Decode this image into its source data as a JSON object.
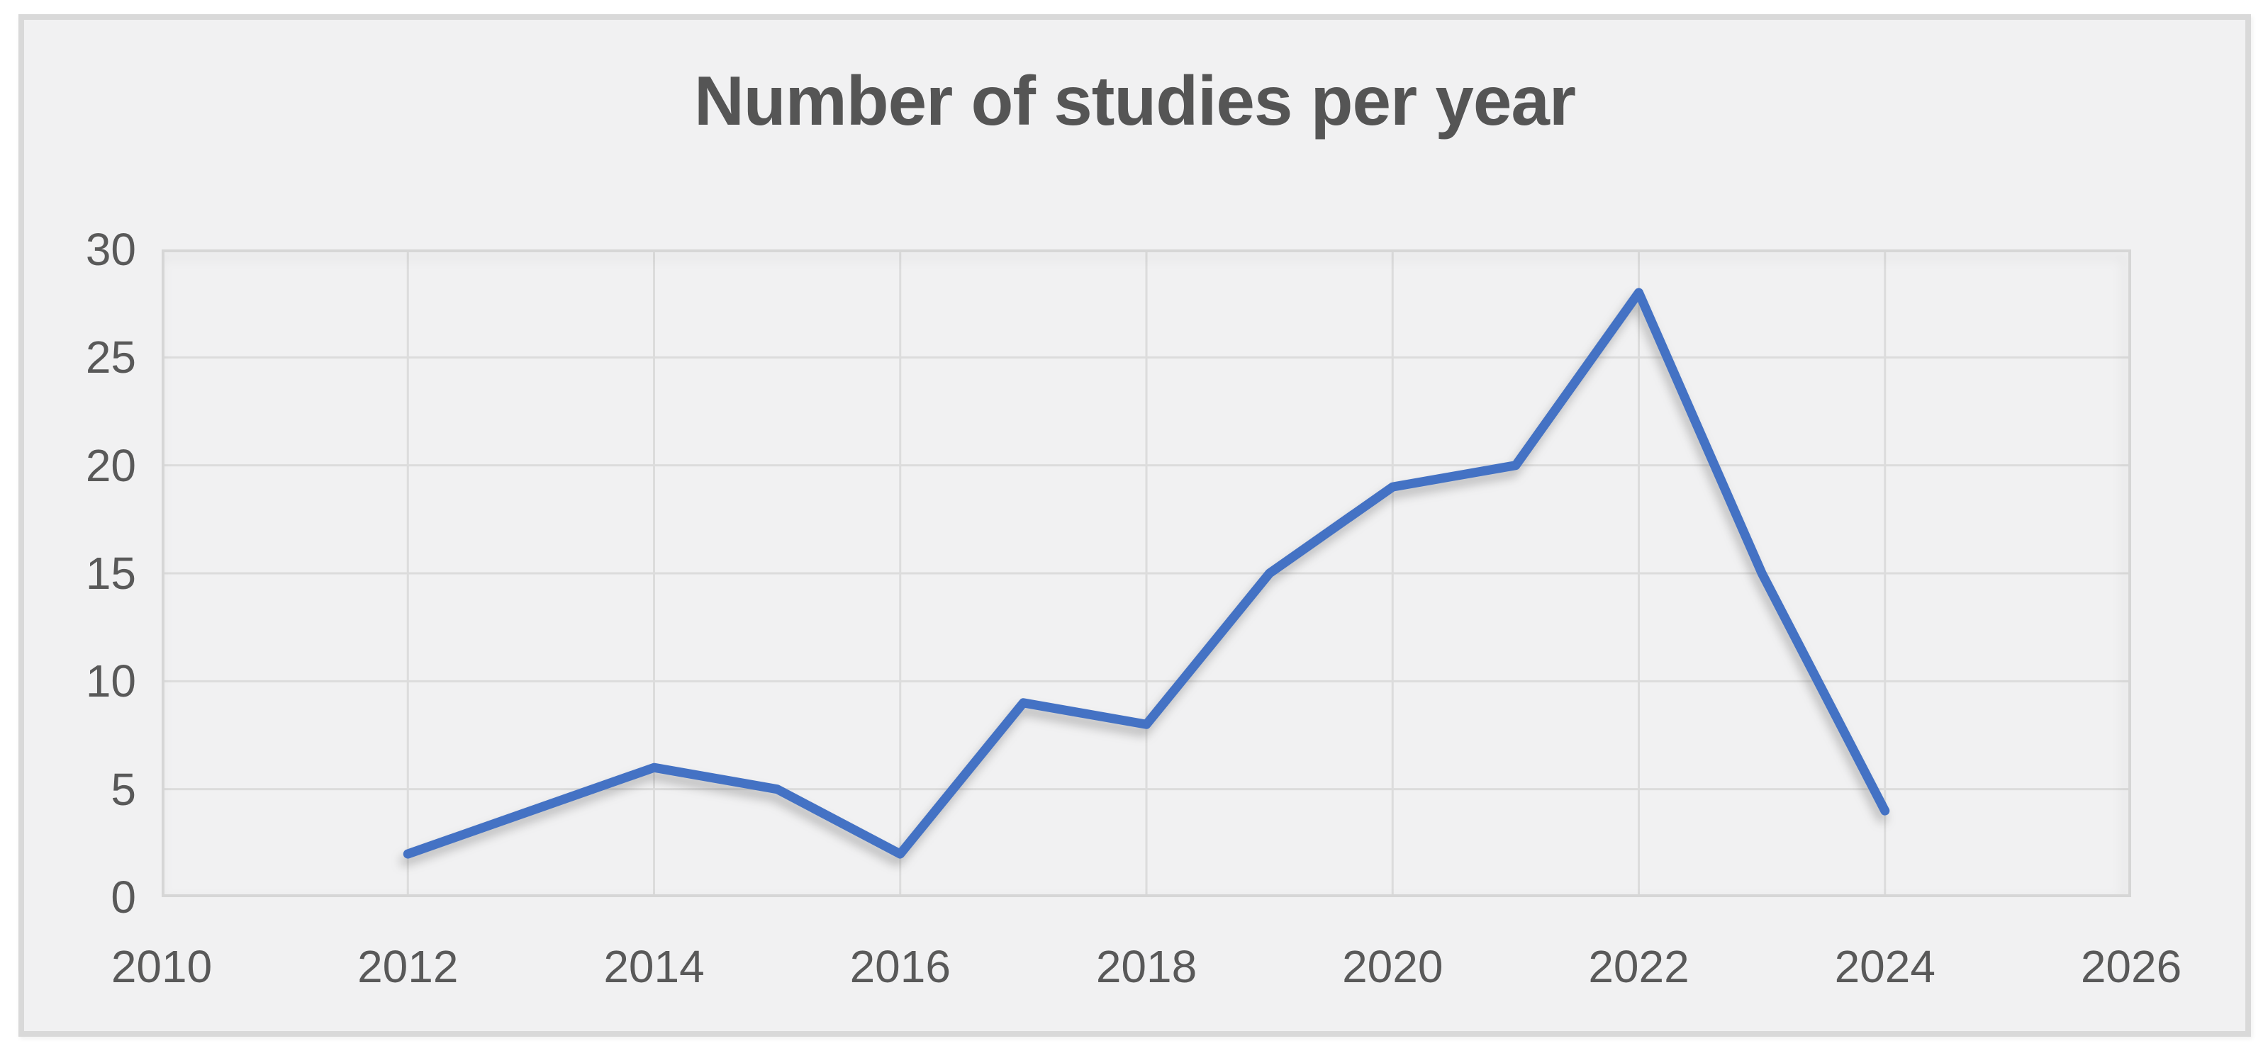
{
  "title": "Number of studies per year",
  "colors": {
    "background": "#ffffff",
    "chart_fill": "#f1f1f2",
    "chart_border": "#d9d9d9",
    "gridline": "#dcdcdc",
    "plot_border": "#d6d6d6",
    "title_text": "#555555",
    "tick_text": "#595959",
    "line": "#4472C4"
  },
  "chart_data": {
    "type": "line",
    "title": "Number of studies per year",
    "x": [
      2012,
      2013,
      2014,
      2015,
      2016,
      2017,
      2018,
      2019,
      2020,
      2021,
      2022,
      2023,
      2024
    ],
    "values": [
      2,
      4,
      6,
      5,
      2,
      9,
      8,
      15,
      19,
      20,
      28,
      15,
      4
    ],
    "series_color": "#4472C4",
    "xlabel": "",
    "ylabel": "",
    "xlim": [
      2010,
      2026
    ],
    "ylim": [
      0,
      30
    ],
    "x_ticks": [
      2010,
      2012,
      2014,
      2016,
      2018,
      2020,
      2022,
      2024,
      2026
    ],
    "y_ticks": [
      0,
      5,
      10,
      15,
      20,
      25,
      30
    ],
    "grid": true,
    "legend": false
  }
}
